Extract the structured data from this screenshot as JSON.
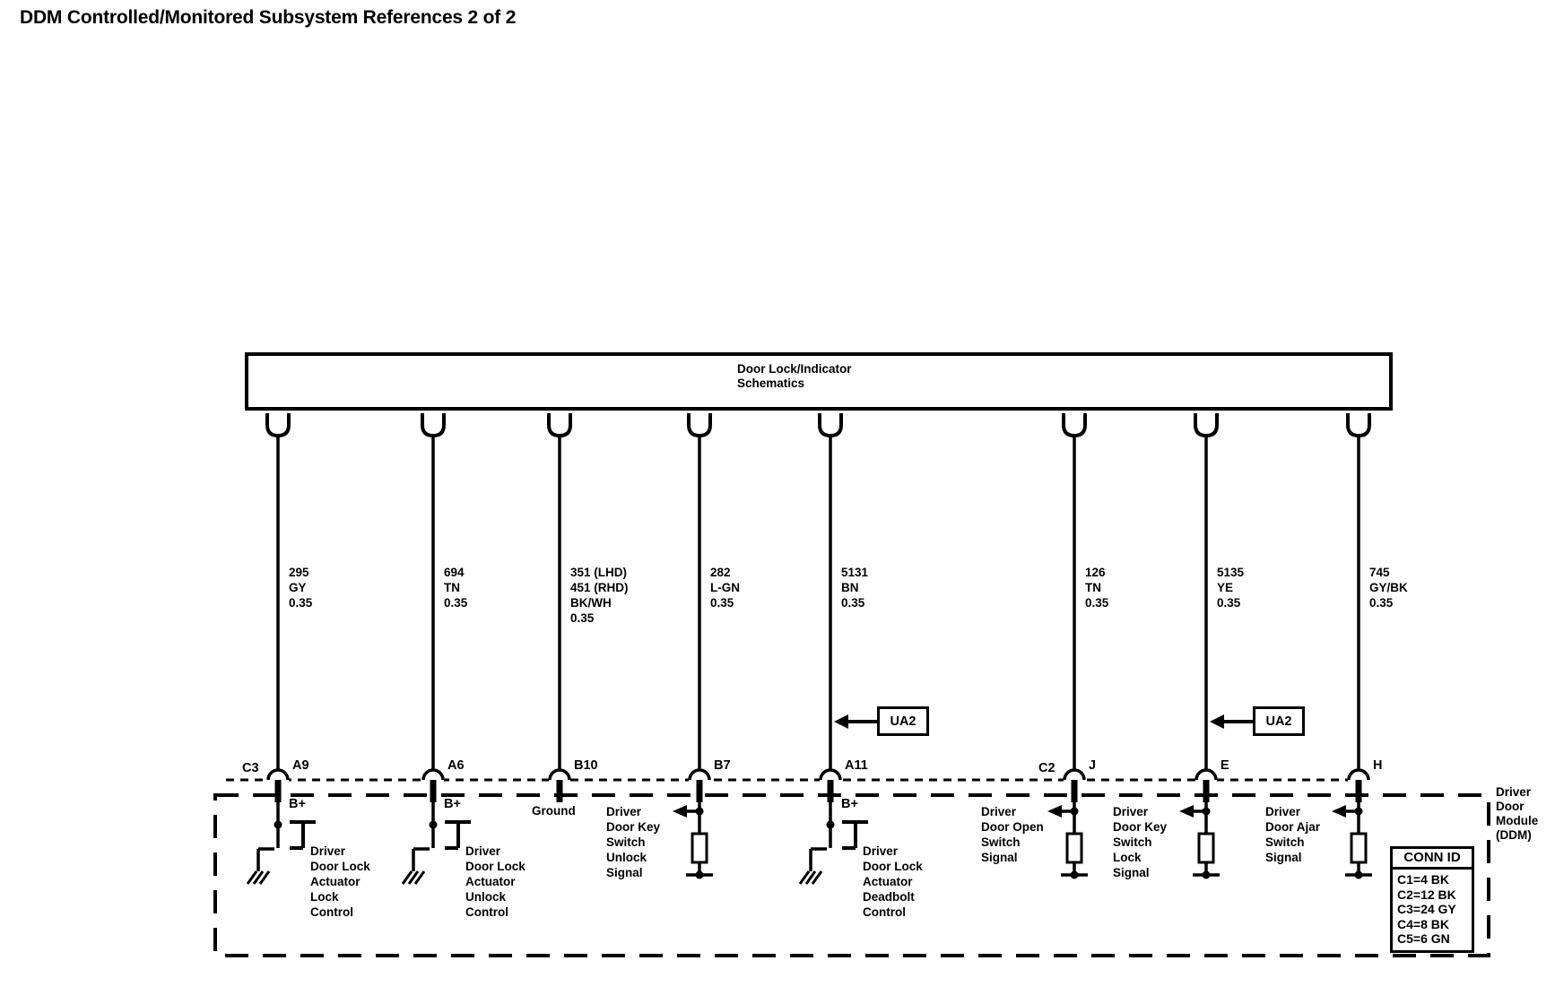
{
  "title": "DDM Controlled/Monitored Subsystem References 2 of 2",
  "schematic_box": {
    "label_line1": "Door Lock/Indicator",
    "label_line2": "Schematics"
  },
  "module": {
    "name_lines": [
      "Driver",
      "Door",
      "Module",
      "(DDM)"
    ]
  },
  "conn_id_table": {
    "header": "CONN ID",
    "rows": [
      "C1=4 BK",
      "C2=12 BK",
      "C3=24 GY",
      "C4=8 BK",
      "C5=6 GN"
    ]
  },
  "wires": [
    {
      "circuit_lines": [
        "295",
        "GY",
        "0.35"
      ],
      "connector": "C3",
      "pin": "A9",
      "supply": "B+",
      "component_lines": [
        "Driver",
        "Door Lock",
        "Actuator",
        "Lock",
        "Control"
      ]
    },
    {
      "circuit_lines": [
        "694",
        "TN",
        "0.35"
      ],
      "pin": "A6",
      "supply": "B+",
      "component_lines": [
        "Driver",
        "Door Lock",
        "Actuator",
        "Unlock",
        "Control"
      ]
    },
    {
      "circuit_lines": [
        "351 (LHD)",
        "451 (RHD)",
        "BK/WH",
        "0.35"
      ],
      "pin": "B10",
      "component_lines": [
        "Ground"
      ]
    },
    {
      "circuit_lines": [
        "282",
        "L-GN",
        "0.35"
      ],
      "pin": "B7",
      "component_lines": [
        "Driver",
        "Door Key",
        "Switch",
        "Unlock",
        "Signal"
      ]
    },
    {
      "circuit_lines": [
        "5131",
        "BN",
        "0.35"
      ],
      "pin": "A11",
      "ua2_label": "UA2",
      "supply": "B+",
      "component_lines": [
        "Driver",
        "Door Lock",
        "Actuator",
        "Deadbolt",
        "Control"
      ]
    },
    {
      "circuit_lines": [
        "126",
        "TN",
        "0.35"
      ],
      "connector": "C2",
      "pin": "J",
      "component_lines": [
        "Driver",
        "Door Open",
        "Switch",
        "Signal"
      ]
    },
    {
      "circuit_lines": [
        "5135",
        "YE",
        "0.35"
      ],
      "pin": "E",
      "ua2_label": "UA2",
      "component_lines": [
        "Driver",
        "Door Key",
        "Switch",
        "Lock",
        "Signal"
      ]
    },
    {
      "circuit_lines": [
        "745",
        "GY/BK",
        "0.35"
      ],
      "pin": "H",
      "component_lines": [
        "Driver",
        "Door Ajar",
        "Switch",
        "Signal"
      ]
    }
  ]
}
